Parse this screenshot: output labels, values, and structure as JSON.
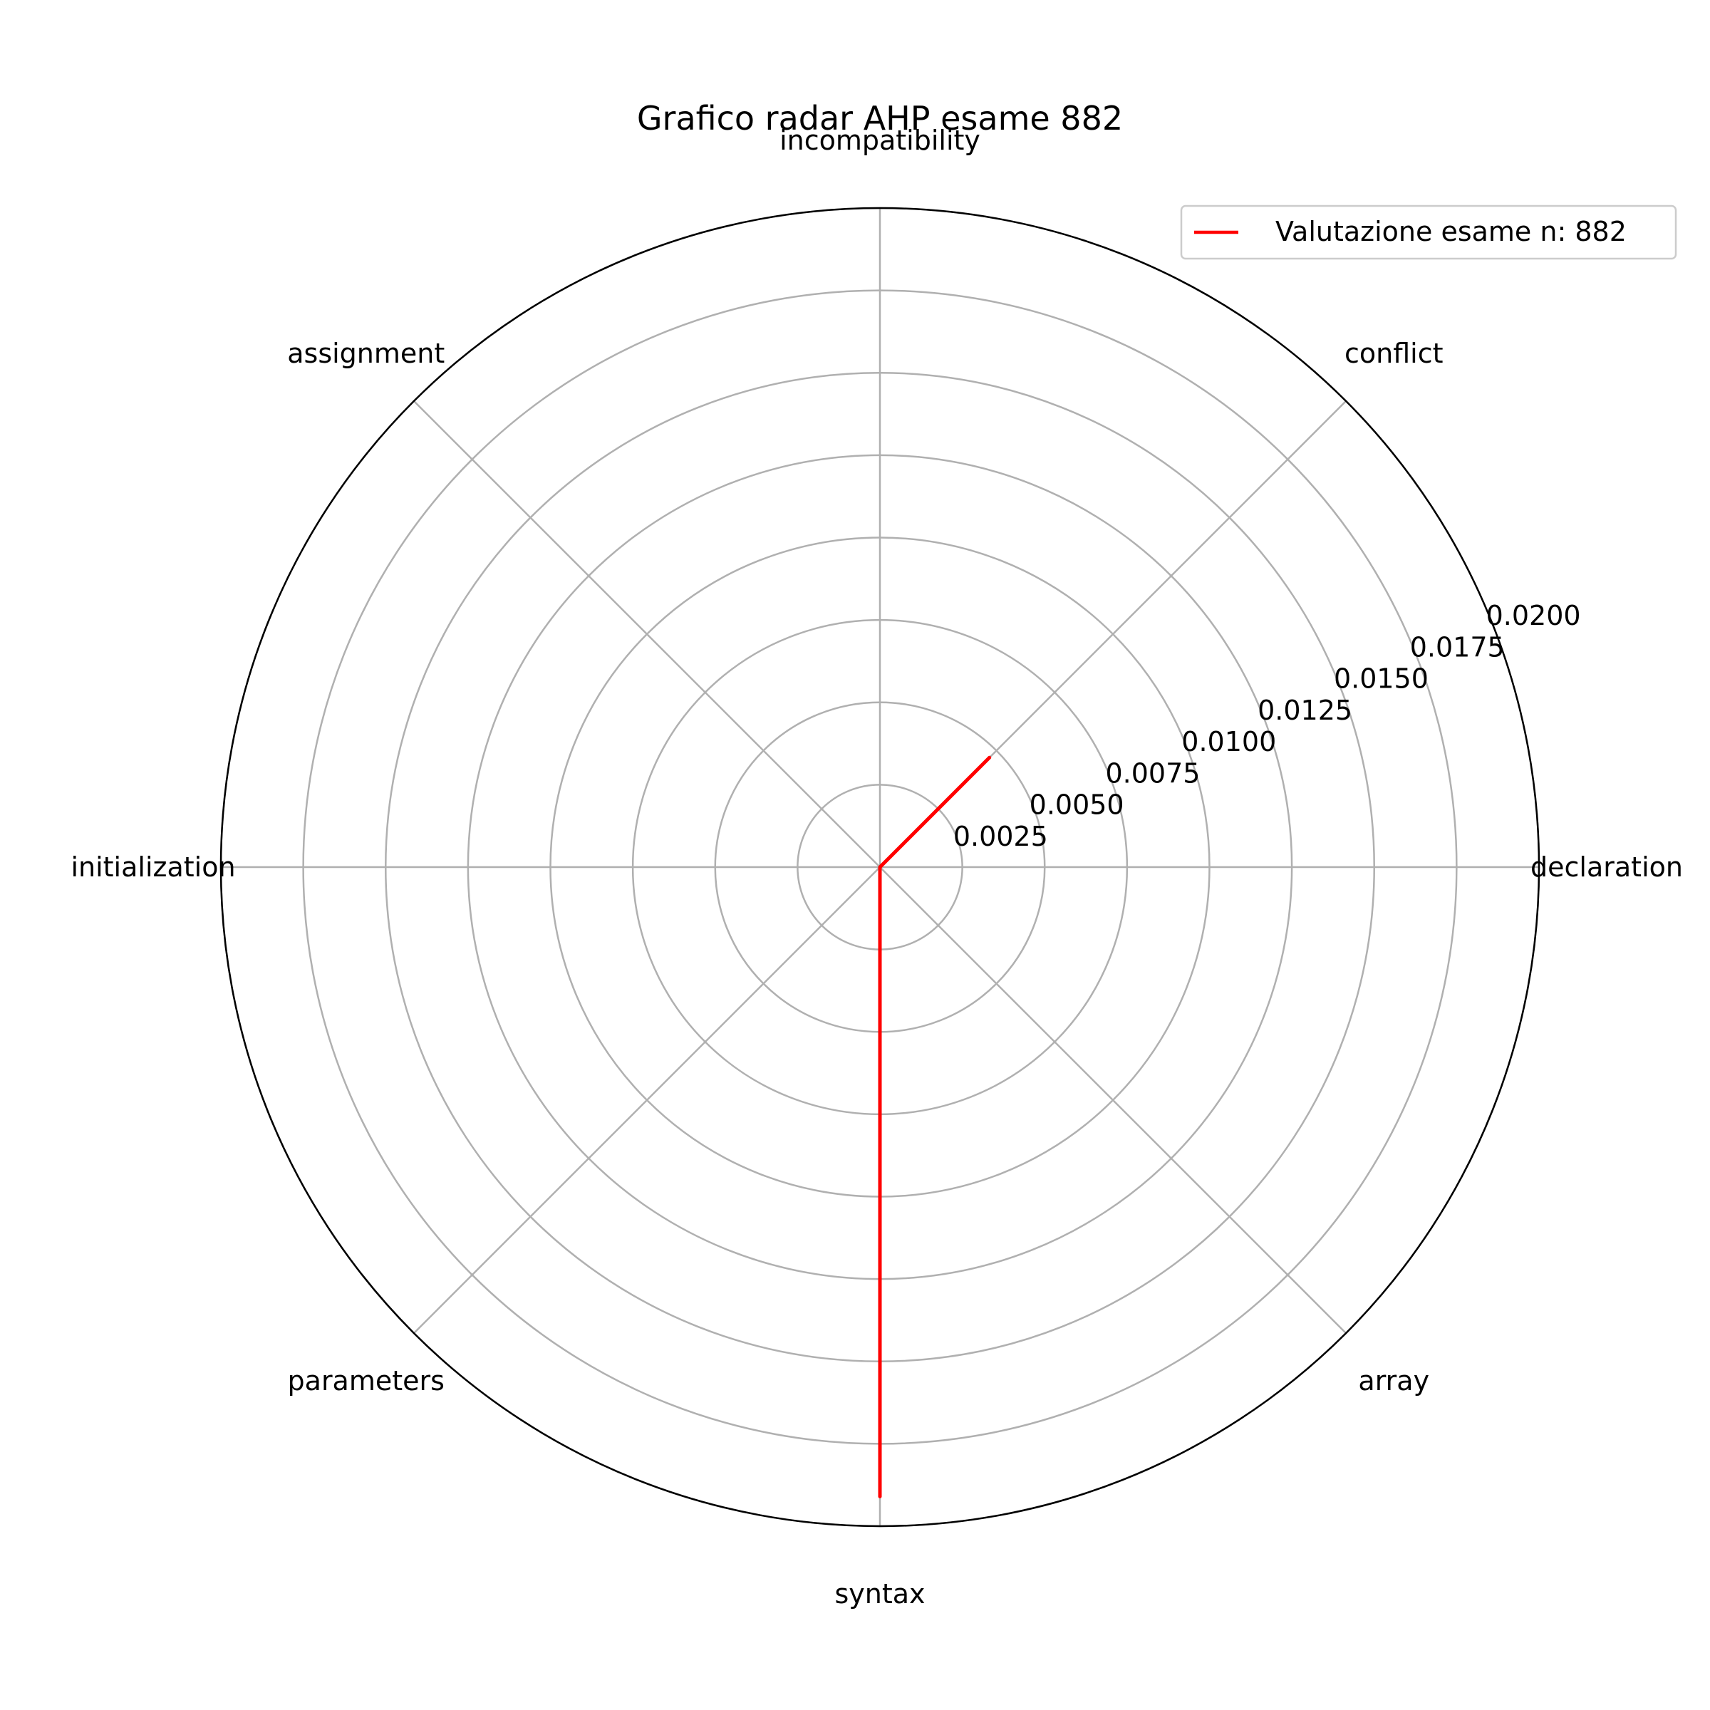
{
  "chart_data": {
    "type": "radar",
    "title": "Grafico radar AHP esame 882",
    "categories": [
      "declaration",
      "conflict",
      "incompatibility",
      "assignment",
      "initialization",
      "parameters",
      "syntax",
      "array"
    ],
    "rmax": 0.02,
    "r_ticks": [
      "0.0025",
      "0.0050",
      "0.0075",
      "0.0100",
      "0.0125",
      "0.0150",
      "0.0175",
      "0.0200"
    ],
    "grid": true,
    "legend_position": "top-right",
    "series": [
      {
        "name": "Valutazione esame n: 882",
        "color": "#ff0000",
        "values": [
          0,
          0.0047,
          0,
          0,
          0,
          0,
          0.0191,
          0
        ]
      }
    ]
  }
}
